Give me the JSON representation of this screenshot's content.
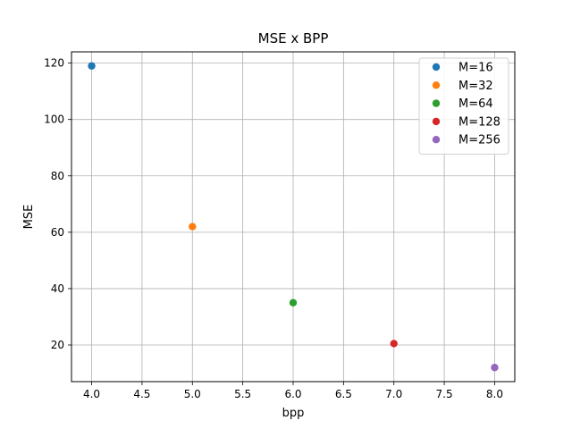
{
  "chart_data": {
    "type": "scatter",
    "title": "MSE x BPP",
    "xlabel": "bpp",
    "ylabel": "MSE",
    "xlim": [
      3.8,
      8.2
    ],
    "ylim": [
      7,
      124
    ],
    "xticks": [
      "4.0",
      "4.5",
      "5.0",
      "5.5",
      "6.0",
      "6.5",
      "7.0",
      "7.5",
      "8.0"
    ],
    "yticks": [
      "20",
      "40",
      "60",
      "80",
      "100",
      "120"
    ],
    "grid": true,
    "legend_position": "top-right",
    "series": [
      {
        "name": "M=16",
        "color": "#1f77b4",
        "x": [
          4.0
        ],
        "y": [
          119
        ]
      },
      {
        "name": "M=32",
        "color": "#ff7f0e",
        "x": [
          5.0
        ],
        "y": [
          62
        ]
      },
      {
        "name": "M=64",
        "color": "#2ca02c",
        "x": [
          6.0
        ],
        "y": [
          35
        ]
      },
      {
        "name": "M=128",
        "color": "#d62728",
        "x": [
          7.0
        ],
        "y": [
          20.5
        ]
      },
      {
        "name": "M=256",
        "color": "#9467bd",
        "x": [
          8.0
        ],
        "y": [
          12
        ]
      }
    ]
  }
}
